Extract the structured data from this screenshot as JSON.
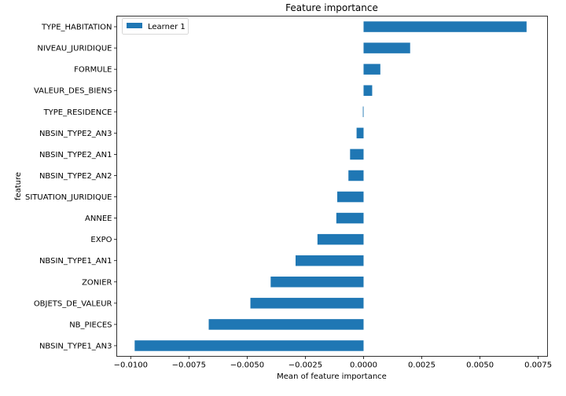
{
  "chart_data": {
    "type": "bar",
    "orientation": "horizontal",
    "title": "Feature importance",
    "xlabel": "Mean of feature importance",
    "ylabel": "feature",
    "xlim": [
      -0.0106,
      0.0079
    ],
    "xticks": [
      -0.01,
      -0.0075,
      -0.005,
      -0.0025,
      0.0,
      0.0025,
      0.005,
      0.0075
    ],
    "xtick_labels": [
      "−0.0100",
      "−0.0075",
      "−0.0050",
      "−0.0025",
      "0.0000",
      "0.0025",
      "0.0050",
      "0.0075"
    ],
    "grid": false,
    "legend_position": "top-left",
    "categories": [
      "TYPE_HABITATION",
      "NIVEAU_JURIDIQUE",
      "FORMULE",
      "VALEUR_DES_BIENS",
      "TYPE_RESIDENCE",
      "NBSIN_TYPE2_AN3",
      "NBSIN_TYPE2_AN1",
      "NBSIN_TYPE2_AN2",
      "SITUATION_JURIDIQUE",
      "ANNEE",
      "EXPO",
      "NBSIN_TYPE1_AN1",
      "ZONIER",
      "OBJETS_DE_VALEUR",
      "NB_PIECES",
      "NBSIN_TYPE1_AN3"
    ],
    "series": [
      {
        "name": "Learner 1",
        "color": "#1f77b4",
        "values": [
          0.007,
          0.002,
          0.00072,
          0.00037,
          -3e-05,
          -0.0003,
          -0.00058,
          -0.00065,
          -0.00113,
          -0.00117,
          -0.00198,
          -0.00292,
          -0.00399,
          -0.00486,
          -0.00665,
          -0.00983
        ]
      }
    ]
  }
}
